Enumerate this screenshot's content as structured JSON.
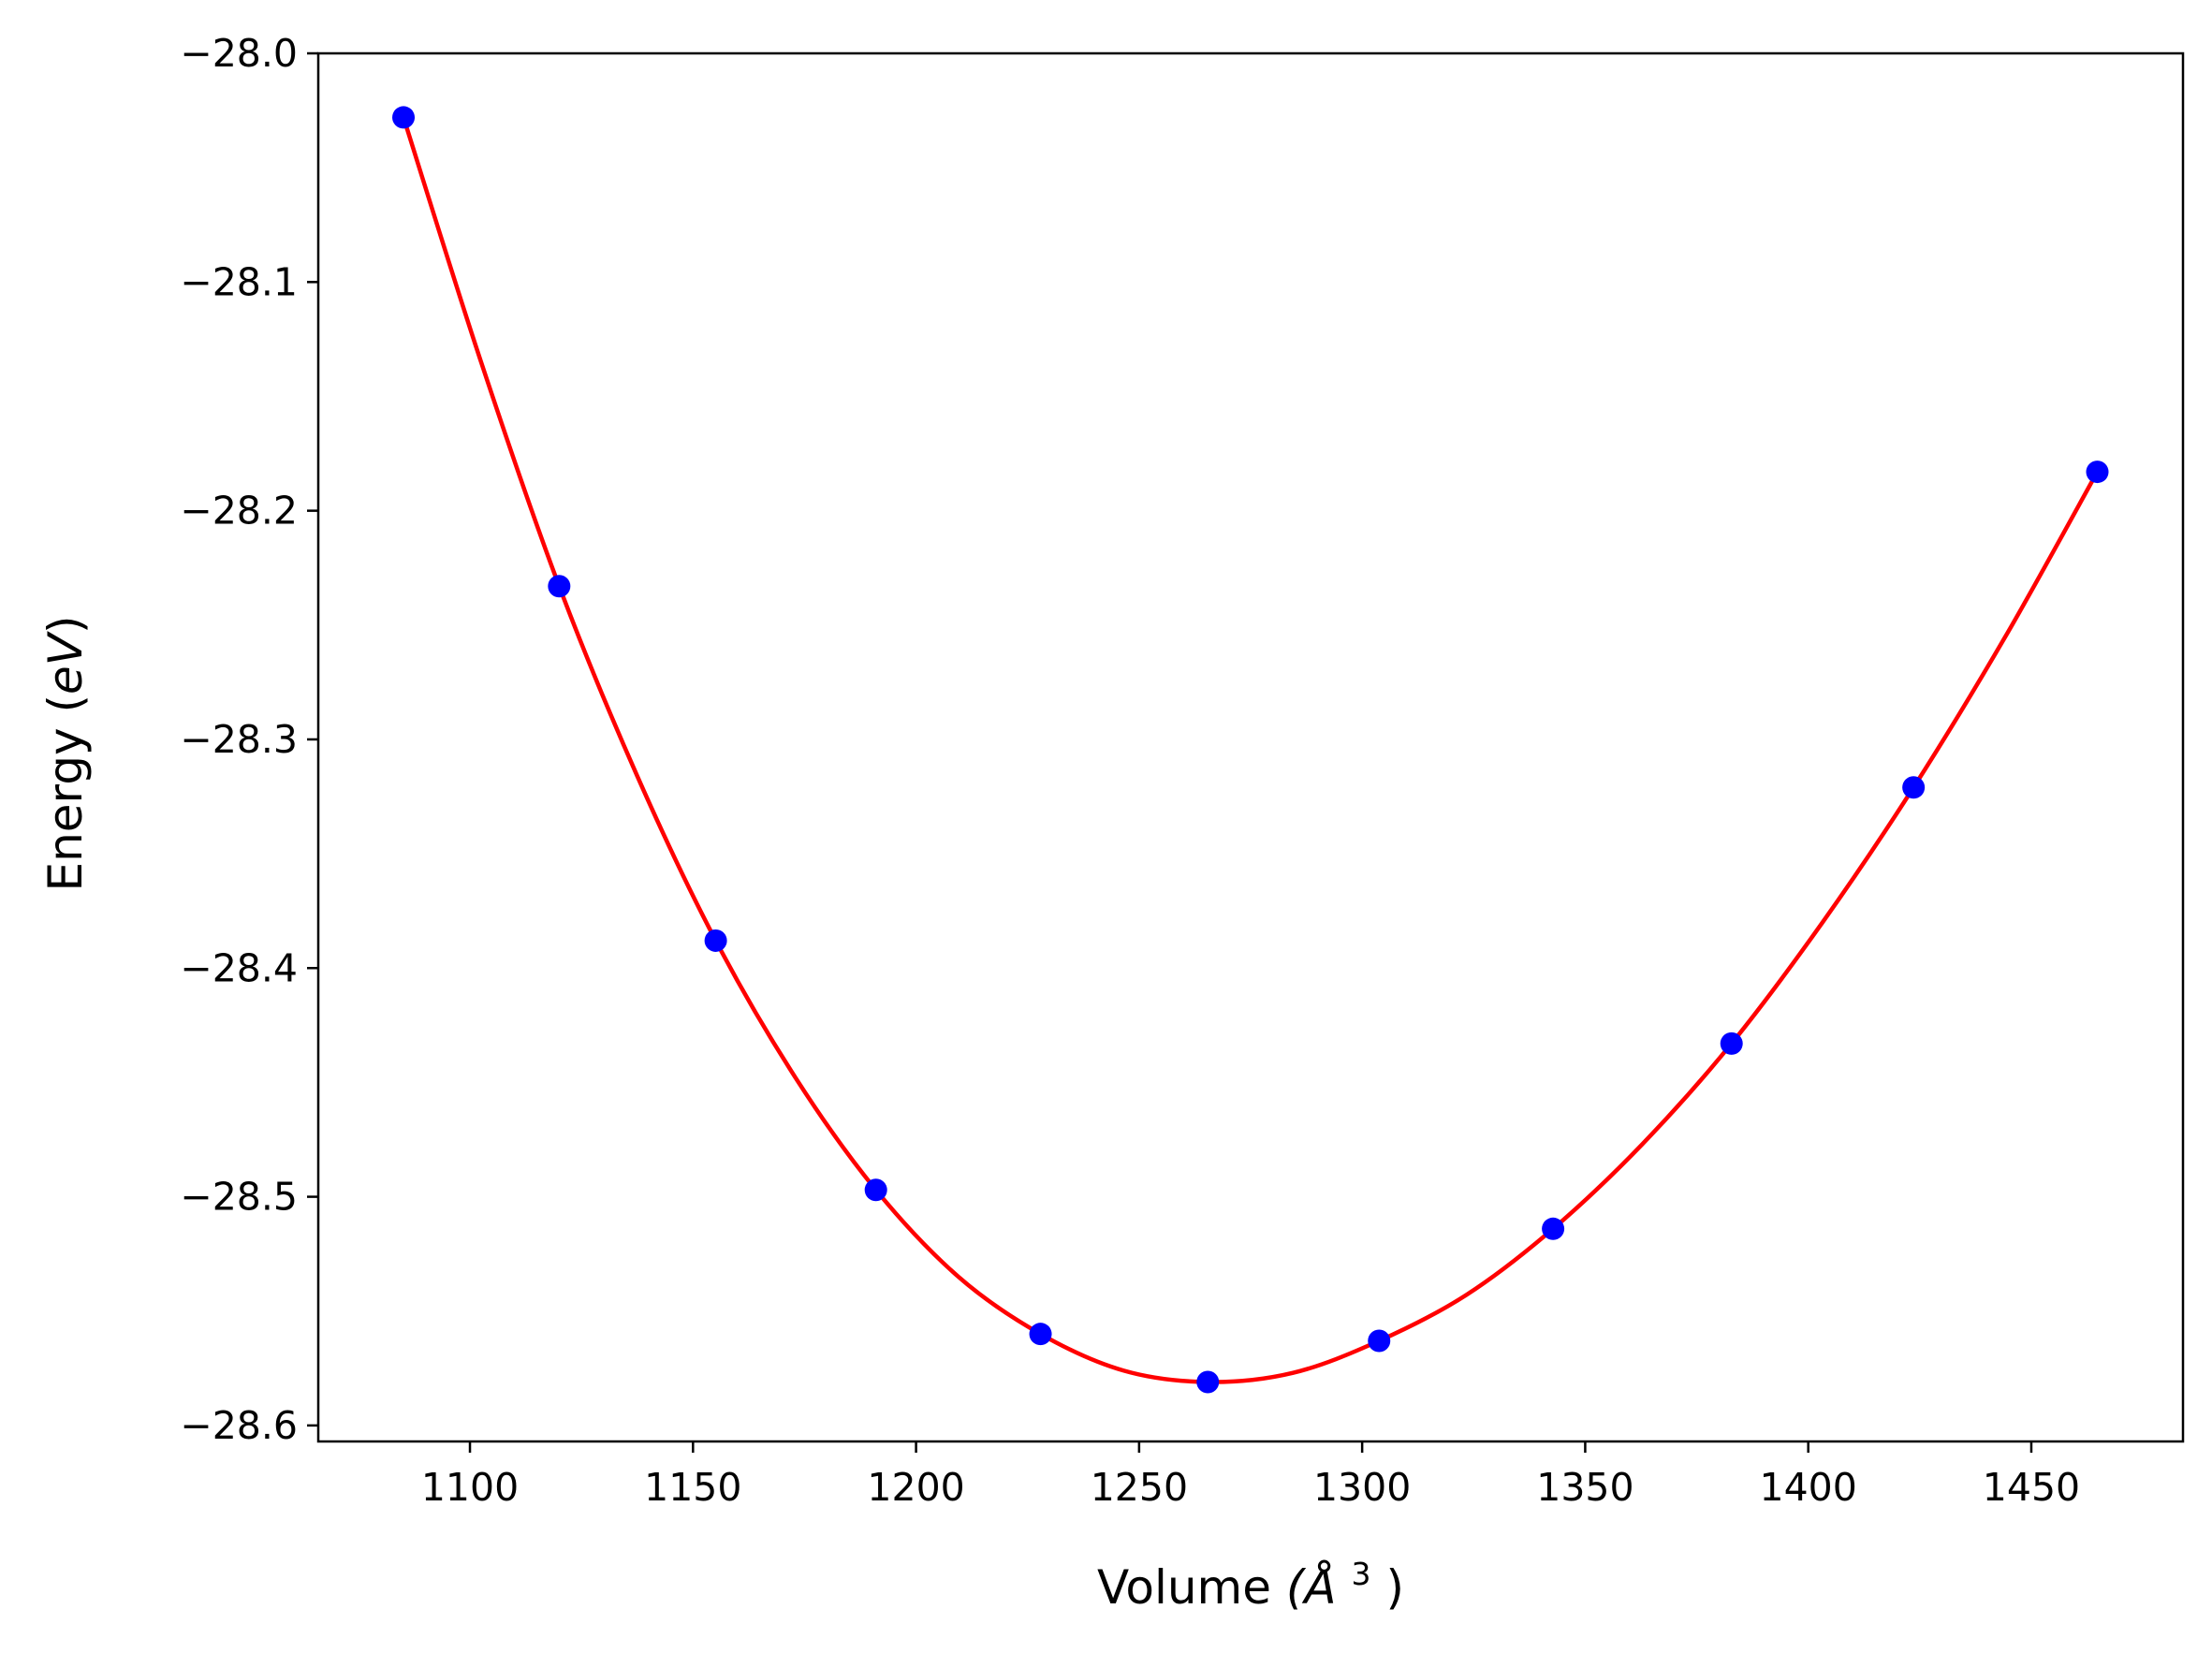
{
  "chart_data": {
    "type": "scatter",
    "title": "",
    "xlabel": "Volume",
    "xlabel_unit": "(Å",
    "xlabel_unit_exponent": "3",
    "xlabel_unit_close": ")",
    "ylabel": "Energy",
    "ylabel_unit_open": "(",
    "ylabel_unit": "eV",
    "ylabel_unit_close": ")",
    "xlim": [
      1066,
      1484
    ],
    "ylim": [
      -28.607,
      -28.0
    ],
    "xticks": [
      1100,
      1150,
      1200,
      1250,
      1300,
      1350,
      1400,
      1450
    ],
    "xtick_labels": [
      "1100",
      "1150",
      "1200",
      "1250",
      "1300",
      "1350",
      "1400",
      "1450"
    ],
    "yticks": [
      -28.0,
      -28.1,
      -28.2,
      -28.3,
      -28.4,
      -28.5,
      -28.6
    ],
    "ytick_labels": [
      "−28.0",
      "−28.1",
      "−28.2",
      "−28.3",
      "−28.4",
      "−28.5",
      "−28.6"
    ],
    "grid": false,
    "series": [
      {
        "kind": "points",
        "color": "#0000ff",
        "x": [
          1085.1,
          1120.0,
          1155.1,
          1191.0,
          1227.9,
          1265.4,
          1303.8,
          1342.8,
          1382.8,
          1423.6,
          1464.8
        ],
        "y": [
          -28.028,
          -28.233,
          -28.388,
          -28.497,
          -28.56,
          -28.581,
          -28.563,
          -28.514,
          -28.433,
          -28.321,
          -28.183
        ]
      },
      {
        "kind": "fit-curve",
        "color": "#ff0000",
        "x": [
          1085.1,
          1102.5,
          1120.0,
          1137.5,
          1155.1,
          1173.0,
          1191.0,
          1209.5,
          1227.9,
          1246.5,
          1265.4,
          1284.5,
          1303.8,
          1323.3,
          1342.8,
          1362.8,
          1382.8,
          1403.2,
          1423.6,
          1444.2,
          1464.8
        ],
        "y": [
          -28.028,
          -28.135,
          -28.233,
          -28.316,
          -28.388,
          -28.448,
          -28.497,
          -28.535,
          -28.56,
          -28.576,
          -28.581,
          -28.577,
          -28.563,
          -28.543,
          -28.514,
          -28.477,
          -28.433,
          -28.38,
          -28.321,
          -28.255,
          -28.183
        ]
      }
    ]
  }
}
